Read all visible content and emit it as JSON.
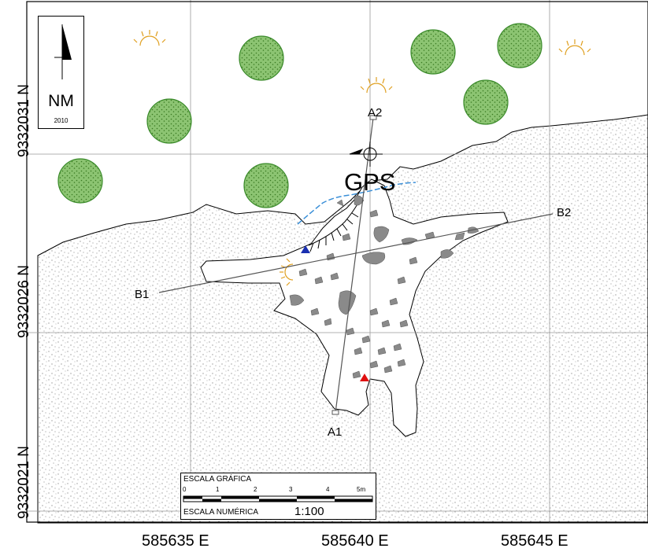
{
  "north_arrow": {
    "label": "NM",
    "year": "2010",
    "icon": "north-arrow-icon"
  },
  "coordinates": {
    "northing": [
      "9332031 N",
      "9332026 N",
      "9332021 N"
    ],
    "easting": [
      "585635 E",
      "585640 E",
      "585645 E"
    ]
  },
  "profiles": {
    "a1": "A1",
    "a2": "A2",
    "b1": "B1",
    "b2": "B2"
  },
  "gps_label": "GPS",
  "scale": {
    "title": "ESCALA GRÁFICA",
    "ticks": [
      "0",
      "1",
      "2",
      "3",
      "4",
      "5m"
    ],
    "numeric_label": "ESCALA NUMÉRICA",
    "numeric_value": "1:100"
  },
  "colors": {
    "tree": "#3a8a2a",
    "tree_fill": "#8cc472",
    "sun": "#e0a020",
    "water": "#3a8fd8",
    "rock": "#8a8a8a",
    "stipple": "#9a9a9a",
    "marker_blue": "#1a2fb0",
    "marker_red": "#e01010"
  }
}
